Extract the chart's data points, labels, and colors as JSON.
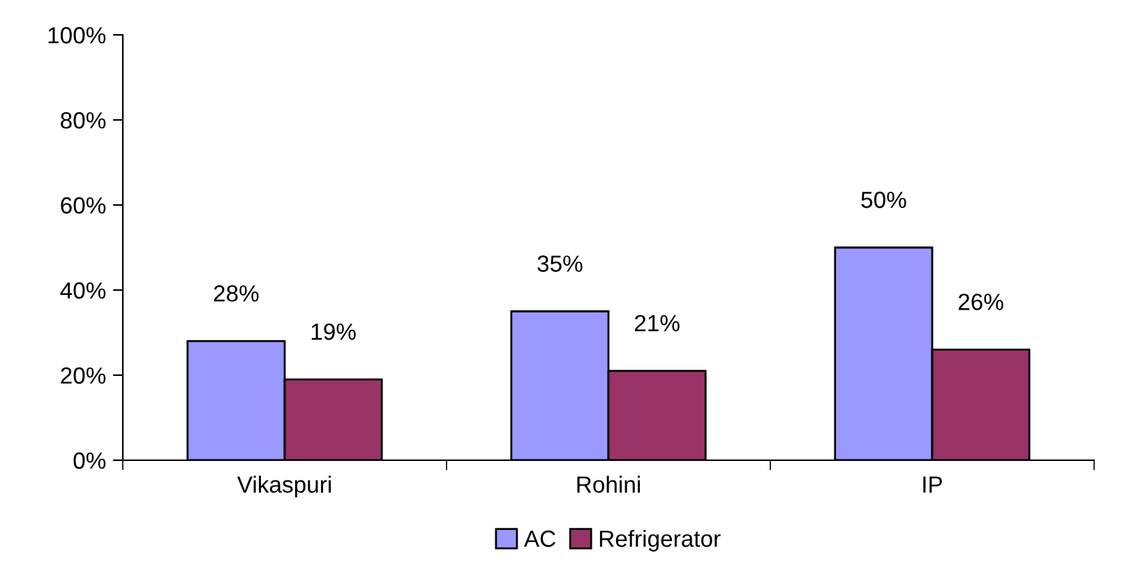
{
  "chart_data": {
    "type": "bar",
    "categories": [
      "Vikaspuri",
      "Rohini",
      "IP"
    ],
    "series": [
      {
        "name": "AC",
        "color": "#9999ff",
        "values": [
          28,
          35,
          50
        ],
        "value_labels": [
          "28%",
          "35%",
          "50%"
        ]
      },
      {
        "name": "Refrigerator",
        "color": "#993366",
        "values": [
          19,
          21,
          26
        ],
        "value_labels": [
          "19%",
          "21%",
          "26%"
        ]
      }
    ],
    "ylim": [
      0,
      100
    ],
    "yticks": [
      {
        "value": 0,
        "label": "0%"
      },
      {
        "value": 20,
        "label": "20%"
      },
      {
        "value": 40,
        "label": "40%"
      },
      {
        "value": 60,
        "label": "60%"
      },
      {
        "value": 80,
        "label": "80%"
      },
      {
        "value": 100,
        "label": "100%"
      }
    ],
    "grid": false,
    "legend": "bottom"
  }
}
